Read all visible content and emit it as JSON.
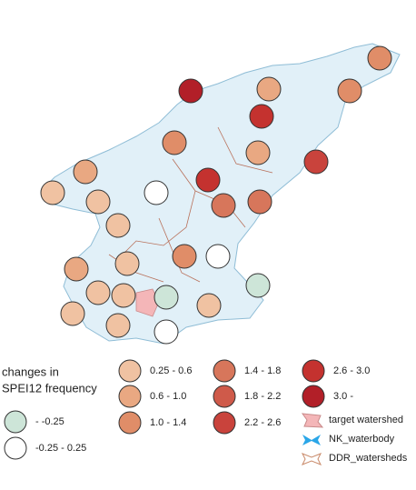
{
  "legend": {
    "title": [
      "changes in",
      "SPEI12 frequency"
    ],
    "classes": [
      {
        "label": "- -0.25",
        "color": "#cde5d8"
      },
      {
        "label": "-0.25 - 0.25",
        "color": "#ffffff"
      },
      {
        "label": "0.25 - 0.6",
        "color": "#f0c2a2"
      },
      {
        "label": "0.6 - 1.0",
        "color": "#e9a882"
      },
      {
        "label": "1.0 - 1.4",
        "color": "#e08d68"
      },
      {
        "label": "1.4 - 1.8",
        "color": "#d7765b"
      },
      {
        "label": "1.8 - 2.2",
        "color": "#cf5a4a"
      },
      {
        "label": "2.2 - 2.6",
        "color": "#c9433c"
      },
      {
        "label": "2.6 - 3.0",
        "color": "#c4322f"
      },
      {
        "label": "3.0 -",
        "color": "#b21f28"
      }
    ],
    "layers": [
      {
        "label": "target watershed"
      },
      {
        "label": "NK_waterbody"
      },
      {
        "label": "DDR_watersheds"
      }
    ]
  }
}
